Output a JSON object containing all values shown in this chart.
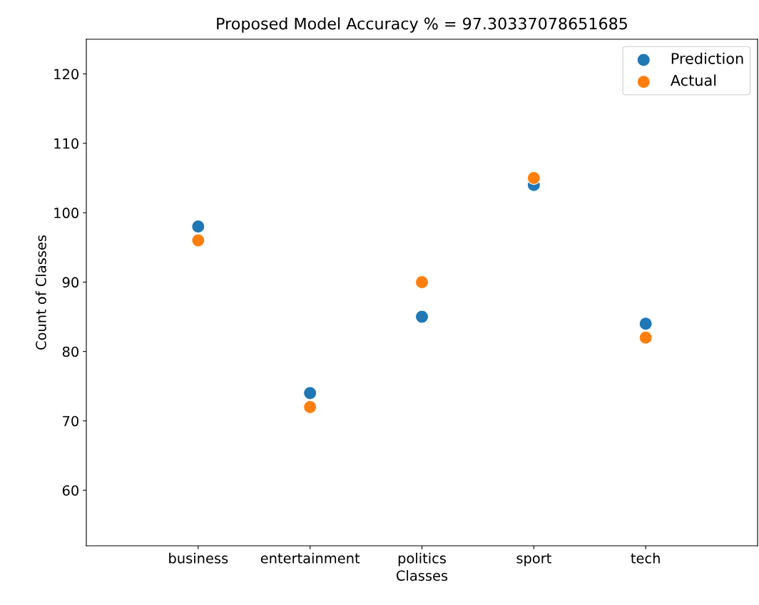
{
  "chart_data": {
    "type": "scatter",
    "title": "Proposed Model Accuracy % = 97.30337078651685",
    "xlabel": "Classes",
    "ylabel": "Count of Classes",
    "categories": [
      "business",
      "entertainment",
      "politics",
      "sport",
      "tech"
    ],
    "series": [
      {
        "name": "Prediction",
        "color": "#1f77b4",
        "values": [
          98,
          74,
          85,
          104,
          84
        ]
      },
      {
        "name": "Actual",
        "color": "#ff7f0e",
        "values": [
          96,
          72,
          90,
          105,
          82
        ]
      }
    ],
    "ylim": [
      52,
      125
    ],
    "yticks": [
      60,
      70,
      80,
      90,
      100,
      110,
      120
    ],
    "grid": false,
    "legend": "top right",
    "marker": "circle"
  }
}
